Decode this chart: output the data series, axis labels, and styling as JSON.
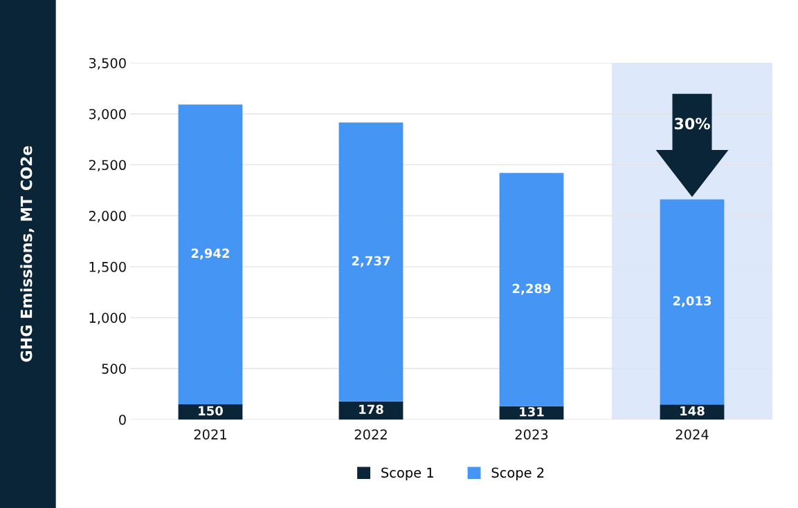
{
  "chart_data": {
    "type": "bar",
    "stacked": true,
    "ylabel": "GHG Emissions, MT CO2e",
    "categories": [
      "2021",
      "2022",
      "2023",
      "2024"
    ],
    "series": [
      {
        "name": "Scope 1",
        "color": "#0b2538",
        "values": [
          150,
          178,
          131,
          148
        ],
        "value_labels": [
          "150",
          "178",
          "131",
          "148"
        ]
      },
      {
        "name": "Scope 2",
        "color": "#4595f5",
        "values": [
          2942,
          2737,
          2289,
          2013
        ],
        "value_labels": [
          "2,942",
          "2,737",
          "2,289",
          "2,013"
        ]
      }
    ],
    "ylim": [
      0,
      3500
    ],
    "yticks": [
      0,
      500,
      {
        "value": 1000,
        "label": "1,000"
      },
      {
        "value": 1500,
        "label": "1,500"
      },
      {
        "value": 2000,
        "label": "2,000"
      },
      {
        "value": 2500,
        "label": "2,500"
      },
      {
        "value": 3000,
        "label": "3,000"
      },
      {
        "value": 3500,
        "label": "3,500"
      }
    ],
    "grid": "y",
    "legend": "bottom",
    "bands": [
      {
        "axis": "x",
        "from": "2024",
        "to": "2024",
        "color": "#dde9fb"
      }
    ],
    "annotations": [
      "30%"
    ]
  }
}
